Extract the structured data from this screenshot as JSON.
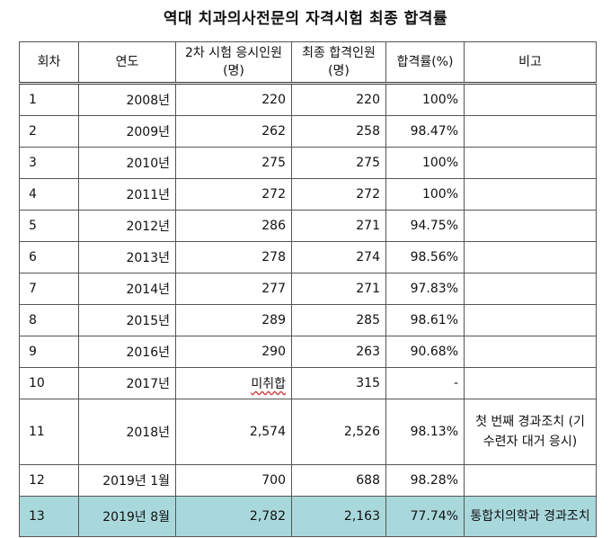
{
  "title": "역대 치과의사전문의 자격시험 최종 합격률",
  "headers": {
    "round": "회차",
    "year": "연도",
    "applicants": "2차 시험 응시인원(명)",
    "passers": "최종 합격인원(명)",
    "rate": "합격률(%)",
    "note": "비고"
  },
  "rows": [
    {
      "round": "1",
      "year": "2008년",
      "applicants": "220",
      "passers": "220",
      "rate": "100%",
      "note": ""
    },
    {
      "round": "2",
      "year": "2009년",
      "applicants": "262",
      "passers": "258",
      "rate": "98.47%",
      "note": ""
    },
    {
      "round": "3",
      "year": "2010년",
      "applicants": "275",
      "passers": "275",
      "rate": "100%",
      "note": ""
    },
    {
      "round": "4",
      "year": "2011년",
      "applicants": "272",
      "passers": "272",
      "rate": "100%",
      "note": ""
    },
    {
      "round": "5",
      "year": "2012년",
      "applicants": "286",
      "passers": "271",
      "rate": "94.75%",
      "note": ""
    },
    {
      "round": "6",
      "year": "2013년",
      "applicants": "278",
      "passers": "274",
      "rate": "98.56%",
      "note": ""
    },
    {
      "round": "7",
      "year": "2014년",
      "applicants": "277",
      "passers": "271",
      "rate": "97.83%",
      "note": ""
    },
    {
      "round": "8",
      "year": "2015년",
      "applicants": "289",
      "passers": "285",
      "rate": "98.61%",
      "note": ""
    },
    {
      "round": "9",
      "year": "2016년",
      "applicants": "290",
      "passers": "263",
      "rate": "90.68%",
      "note": ""
    },
    {
      "round": "10",
      "year": "2017년",
      "applicants": "미취합",
      "passers": "315",
      "rate": "-",
      "note": ""
    },
    {
      "round": "11",
      "year": "2018년",
      "applicants": "2,574",
      "passers": "2,526",
      "rate": "98.13%",
      "note": "첫 번째 경과조치 (기수련자 대거 응시)"
    },
    {
      "round": "12",
      "year": "2019년 1월",
      "applicants": "700",
      "passers": "688",
      "rate": "98.28%",
      "note": ""
    },
    {
      "round": "13",
      "year": "2019년 8월",
      "applicants": "2,782",
      "passers": "2,163",
      "rate": "77.74%",
      "note": "통합치의학과 경과조치"
    }
  ],
  "highlight_color": "#a9d8dc"
}
